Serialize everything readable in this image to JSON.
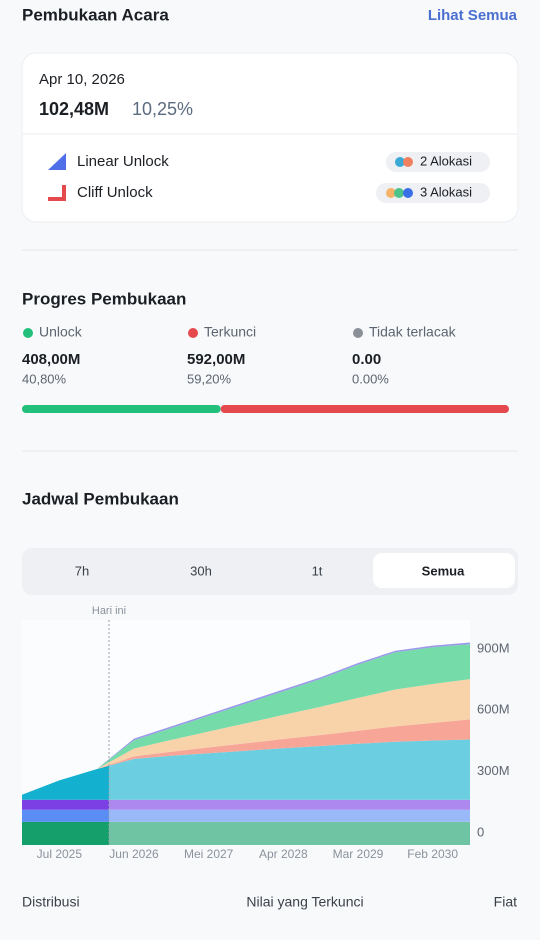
{
  "header": {
    "title": "Pembukaan Acara",
    "link": "Lihat Semua"
  },
  "event": {
    "date": "Apr 10, 2026",
    "amount": "102,48M",
    "percent": "10,25%",
    "items": [
      {
        "label": "Linear Unlock",
        "badge": "2 Alokasi"
      },
      {
        "label": "Cliff Unlock",
        "badge": "3 Alokasi"
      }
    ]
  },
  "progress": {
    "title": "Progres Pembukaan",
    "items": [
      {
        "label": "Unlock",
        "amount": "408,00M",
        "share": 40.8,
        "share_label": "40,80%",
        "color": "#22c07a"
      },
      {
        "label": "Terkunci",
        "amount": "592,00M",
        "share": 59.2,
        "share_label": "59,20%",
        "color": "#e5484d"
      },
      {
        "label": "Tidak terlacak",
        "amount": "0.00",
        "share": 0,
        "share_label": "0.00%",
        "color": "#8a8f98"
      }
    ]
  },
  "schedule": {
    "title": "Jadwal Pembukaan",
    "tabs": [
      "7h",
      "30h",
      "1t",
      "Semua"
    ],
    "selected_tab": 3
  },
  "chart_data": {
    "type": "stacked_area",
    "annotation": "Hari ini",
    "categories": [
      null,
      "Jul 2025",
      null,
      "Jun 2026",
      null,
      "Mei 2027",
      null,
      "Apr 2028",
      null,
      "Mar 2029",
      null,
      "Feb 2030",
      null
    ],
    "ylim": [
      0,
      1100
    ],
    "yticks": [
      0,
      {
        "value": 300,
        "label": "300M"
      },
      {
        "value": 600,
        "label": "600M"
      },
      {
        "value": 900,
        "label": "900M"
      }
    ],
    "series": [
      {
        "color": "#15a06b",
        "values": [
          113,
          113,
          113,
          113,
          113,
          113,
          113,
          113,
          113,
          113,
          113,
          113,
          113
        ]
      },
      {
        "color": "#5b8ef5",
        "values": [
          59,
          59,
          59,
          59,
          59,
          59,
          59,
          59,
          59,
          59,
          59,
          59,
          59
        ]
      },
      {
        "color": "#7b3fe4",
        "values": [
          49,
          49,
          49,
          49,
          49,
          49,
          49,
          49,
          49,
          49,
          49,
          49,
          49
        ]
      },
      {
        "color": "#13b0cf",
        "values": [
          25,
          95,
          150,
          200,
          215,
          228,
          240,
          252,
          263,
          274,
          284,
          290,
          295
        ]
      },
      {
        "color": "#f7a597",
        "values": [
          0,
          0,
          0,
          12,
          20,
          28,
          36,
          45,
          54,
          64,
          75,
          86,
          98
        ]
      },
      {
        "color": "#f8d3aa",
        "values": [
          0,
          0,
          0,
          39,
          58,
          78,
          98,
          118,
          138,
          160,
          180,
          190,
          197
        ]
      },
      {
        "color": "#74dba9",
        "values": [
          0,
          0,
          0,
          40,
          58,
          77,
          97,
          116,
          136,
          163,
          182,
          180,
          171
        ]
      },
      {
        "color": "#9b98ea",
        "values": [
          0,
          0,
          0,
          8,
          8,
          8,
          8,
          8,
          8,
          8,
          8,
          8,
          8
        ]
      }
    ]
  },
  "footer": {
    "left": "Distribusi",
    "center": "Nilai yang Terkunci",
    "right": "Fiat"
  }
}
